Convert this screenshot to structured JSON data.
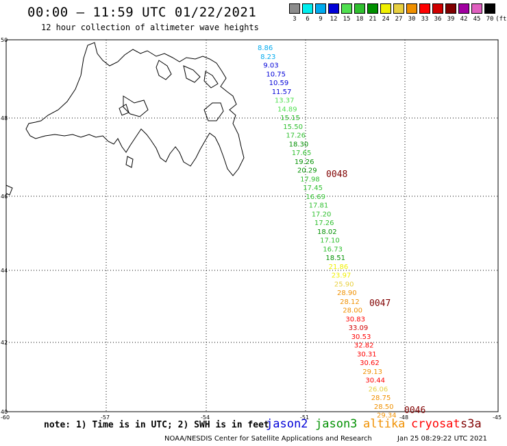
{
  "header": {
    "title": "00:00 – 11:59 UTC 01/22/2021",
    "subtitle": "12 hour collection of altimeter wave heights"
  },
  "color_scale": {
    "unit": "(ft)",
    "bins": [
      {
        "label": "3",
        "color": "#8c8c8c"
      },
      {
        "label": "6",
        "color": "#00eeee"
      },
      {
        "label": "9",
        "color": "#00aaee"
      },
      {
        "label": "12",
        "color": "#0000d8"
      },
      {
        "label": "15",
        "color": "#50e050"
      },
      {
        "label": "18",
        "color": "#30c030"
      },
      {
        "label": "21",
        "color": "#009000"
      },
      {
        "label": "24",
        "color": "#f0f000"
      },
      {
        "label": "27",
        "color": "#e8d040"
      },
      {
        "label": "30",
        "color": "#f09000"
      },
      {
        "label": "33",
        "color": "#ff0000"
      },
      {
        "label": "36",
        "color": "#d00000"
      },
      {
        "label": "39",
        "color": "#800000"
      },
      {
        "label": "42",
        "color": "#a000a0"
      },
      {
        "label": "45",
        "color": "#e060c0"
      },
      {
        "label": "70",
        "color": "#000000"
      }
    ]
  },
  "map": {
    "lon_ticks": [
      "-60",
      "-57",
      "-54",
      "-51",
      "-48",
      "-45"
    ],
    "lat_ticks": [
      "50",
      "48",
      "46",
      "44",
      "42",
      "40"
    ],
    "lon_range": [
      -60,
      -45
    ],
    "lat_range": [
      40,
      50
    ],
    "observations": [
      {
        "value": "8.86",
        "color": "#00aaee"
      },
      {
        "value": "8.23",
        "color": "#00aaee"
      },
      {
        "value": "9.03",
        "color": "#0000d8"
      },
      {
        "value": "10.75",
        "color": "#0000d8"
      },
      {
        "value": "10.59",
        "color": "#0000d8"
      },
      {
        "value": "11.57",
        "color": "#0000d8"
      },
      {
        "value": "13.37",
        "color": "#50e050"
      },
      {
        "value": "14.89",
        "color": "#50e050"
      },
      {
        "value": "15.15",
        "color": "#30c030"
      },
      {
        "value": "15.50",
        "color": "#30c030"
      },
      {
        "value": "17.26",
        "color": "#30c030"
      },
      {
        "value": "18.30",
        "color": "#009000"
      },
      {
        "value": "17.65",
        "color": "#30c030"
      },
      {
        "value": "19.26",
        "color": "#009000"
      },
      {
        "value": "20.29",
        "color": "#009000"
      },
      {
        "value": "17.98",
        "color": "#30c030"
      },
      {
        "value": "17.45",
        "color": "#30c030"
      },
      {
        "value": "16.69",
        "color": "#30c030"
      },
      {
        "value": "17.81",
        "color": "#30c030"
      },
      {
        "value": "17.20",
        "color": "#30c030"
      },
      {
        "value": "17.26",
        "color": "#30c030"
      },
      {
        "value": "18.02",
        "color": "#009000"
      },
      {
        "value": "17.10",
        "color": "#30c030"
      },
      {
        "value": "16.73",
        "color": "#30c030"
      },
      {
        "value": "18.51",
        "color": "#009000"
      },
      {
        "value": "21.86",
        "color": "#f0f000"
      },
      {
        "value": "23.97",
        "color": "#f0f000"
      },
      {
        "value": "25.90",
        "color": "#e8d040"
      },
      {
        "value": "28.90",
        "color": "#f09000"
      },
      {
        "value": "28.12",
        "color": "#f09000"
      },
      {
        "value": "28.00",
        "color": "#f09000"
      },
      {
        "value": "30.83",
        "color": "#ff0000"
      },
      {
        "value": "33.09",
        "color": "#d00000"
      },
      {
        "value": "30.53",
        "color": "#ff0000"
      },
      {
        "value": "32.82",
        "color": "#ff0000"
      },
      {
        "value": "30.31",
        "color": "#ff0000"
      },
      {
        "value": "30.62",
        "color": "#ff0000"
      },
      {
        "value": "29.13",
        "color": "#f09000"
      },
      {
        "value": "30.44",
        "color": "#ff0000"
      },
      {
        "value": "26.06",
        "color": "#e8d040"
      },
      {
        "value": "28.75",
        "color": "#f09000"
      },
      {
        "value": "28.50",
        "color": "#f09000"
      },
      {
        "value": "29.34",
        "color": "#f09000"
      }
    ],
    "pass_labels": [
      "0048",
      "0047",
      "0046"
    ]
  },
  "footer": {
    "note": "note: 1) Time is in UTC; 2) SWH is in feet",
    "satellites": [
      {
        "name": "jason2",
        "color": "#0000d8"
      },
      {
        "name": "jason3",
        "color": "#009000"
      },
      {
        "name": "altika",
        "color": "#f09000"
      },
      {
        "name": "cryosat",
        "color": "#ff0000"
      },
      {
        "name": "s3a",
        "color": "#800000"
      }
    ],
    "credit": "NOAA/NESDIS Center for Satellite Applications and Research",
    "timestamp": "Jan 25 08:29:22 UTC 2021"
  }
}
